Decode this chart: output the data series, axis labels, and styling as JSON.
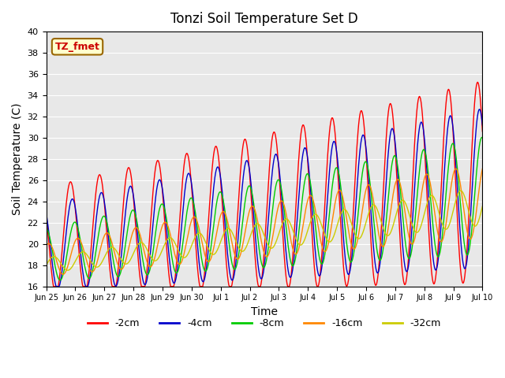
{
  "title": "Tonzi Soil Temperature Set D",
  "xlabel": "Time",
  "ylabel": "Soil Temperature (C)",
  "ylim": [
    16,
    40
  ],
  "bg_color": "#e8e8e8",
  "legend_labels": [
    "-2cm",
    "-4cm",
    "-8cm",
    "-16cm",
    "-32cm"
  ],
  "legend_colors": [
    "#ff0000",
    "#0000cc",
    "#00cc00",
    "#ff8800",
    "#cccc00"
  ],
  "annotation_text": "TZ_fmet",
  "annotation_color": "#cc0000",
  "annotation_bg": "#ffffcc",
  "xtick_labels": [
    "Jun 25",
    "Jun 26",
    "Jun 27",
    "Jun 28",
    "Jun 29",
    "Jun 30",
    "Jul 1",
    "Jul 2",
    "Jul 3",
    "Jul 4",
    "Jul 5",
    "Jul 6",
    "Jul 7",
    "Jul 8",
    "Jul 9",
    "Jul 10"
  ],
  "n_days": 15
}
